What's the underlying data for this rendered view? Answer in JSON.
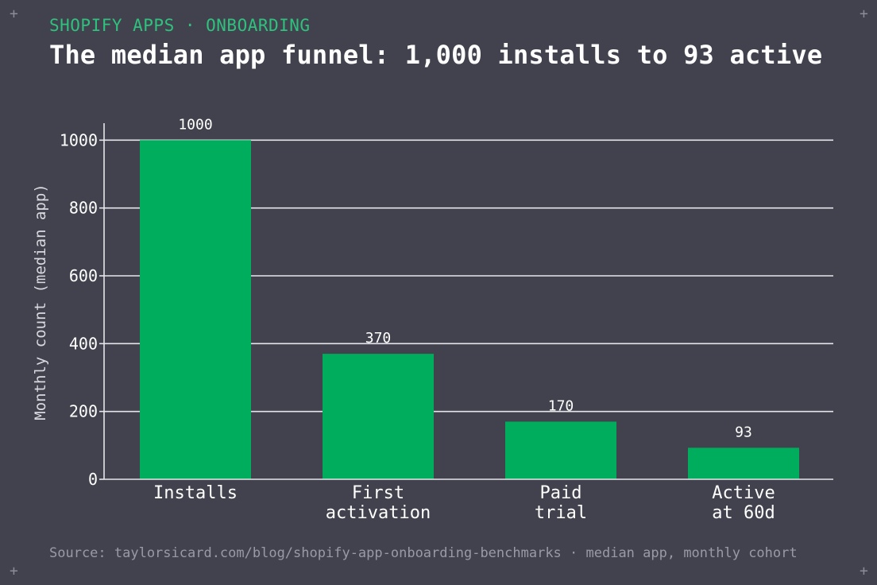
{
  "header": {
    "kicker": "SHOPIFY APPS · ONBOARDING",
    "title": "The median app funnel: 1,000 installs to 93 active"
  },
  "footer": {
    "source": "Source: taylorsicard.com/blog/shopify-app-onboarding-benchmarks · median app, monthly cohort"
  },
  "colors": {
    "background": "#42424e",
    "bar": "#00ad5c",
    "accent": "#2ec27e",
    "grid": "#e6e6ea"
  },
  "chart_data": {
    "type": "bar",
    "categories": [
      "Installs",
      "First activation",
      "Paid trial",
      "Active at 60d"
    ],
    "category_lines": [
      [
        "Installs"
      ],
      [
        "First",
        "activation"
      ],
      [
        "Paid",
        "trial"
      ],
      [
        "Active",
        "at 60d"
      ]
    ],
    "values": [
      1000,
      370,
      170,
      93
    ],
    "value_labels": [
      "1000",
      "370",
      "170",
      "93"
    ],
    "ylabel": "Monthly count (median app)",
    "ylim": [
      0,
      1050
    ],
    "yticks": [
      0,
      200,
      400,
      600,
      800,
      1000
    ],
    "grid": true
  }
}
